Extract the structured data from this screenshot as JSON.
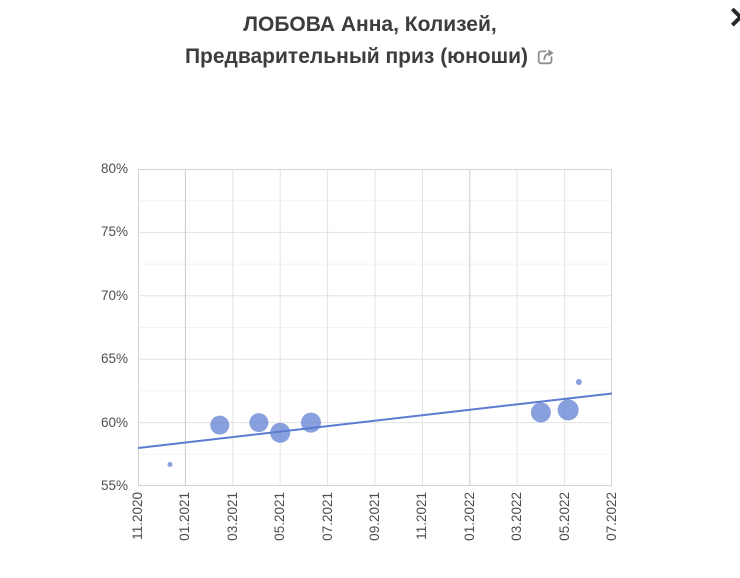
{
  "header": {
    "title_line1": "ЛОБОВА Анна, Колизей,",
    "title_line2": "Предварительный приз (юноши)",
    "close_glyph": "✕"
  },
  "chart_data": {
    "type": "scatter",
    "title": "ЛОБОВА Анна, Колизей, Предварительный приз (юноши)",
    "xlabel": "",
    "ylabel": "",
    "grid": true,
    "ylim": [
      55,
      80
    ],
    "y_major_step": 5,
    "y_minor_step": 2.5,
    "y_tick_labels": [
      "55%",
      "60%",
      "65%",
      "70%",
      "75%",
      "80%"
    ],
    "x_tick_labels": [
      "11.2020",
      "01.2021",
      "03.2021",
      "05.2021",
      "07.2021",
      "09.2021",
      "11.2021",
      "01.2022",
      "03.2022",
      "05.2022",
      "07.2022"
    ],
    "x_range_months": 20,
    "points": [
      {
        "approx_date": "12.2020",
        "x_months": 1.35,
        "value_pct": 56.7,
        "radius_px": 2.5
      },
      {
        "approx_date": "02.2021",
        "x_months": 3.45,
        "value_pct": 59.8,
        "radius_px": 9.5
      },
      {
        "approx_date": "04.2021",
        "x_months": 5.1,
        "value_pct": 60.0,
        "radius_px": 9.5
      },
      {
        "approx_date": "05.2021",
        "x_months": 6.0,
        "value_pct": 59.2,
        "radius_px": 10
      },
      {
        "approx_date": "06.2021",
        "x_months": 7.3,
        "value_pct": 60.0,
        "radius_px": 10
      },
      {
        "approx_date": "04.2022",
        "x_months": 17.0,
        "value_pct": 60.8,
        "radius_px": 10
      },
      {
        "approx_date": "05.2022",
        "x_months": 18.15,
        "value_pct": 61.0,
        "radius_px": 10.5
      },
      {
        "approx_date": "06.2022",
        "x_months": 18.6,
        "value_pct": 63.2,
        "radius_px": 3
      }
    ],
    "trendline": {
      "start_pct": 58.0,
      "end_pct": 62.3
    },
    "colors": {
      "point": "#5b7cd1",
      "point_opacity": 0.72,
      "trendline": "#5b7cd1",
      "grid_minor": "#f3f3f3",
      "grid_major": "#e3e3e3",
      "grid_year": "#cacaca",
      "plot_border": "#d4d4d4",
      "title_text": "#3d3d3d",
      "axis_text": "#4e4e4e",
      "icon_gray": "#8f8f8f"
    },
    "legend": "none"
  }
}
